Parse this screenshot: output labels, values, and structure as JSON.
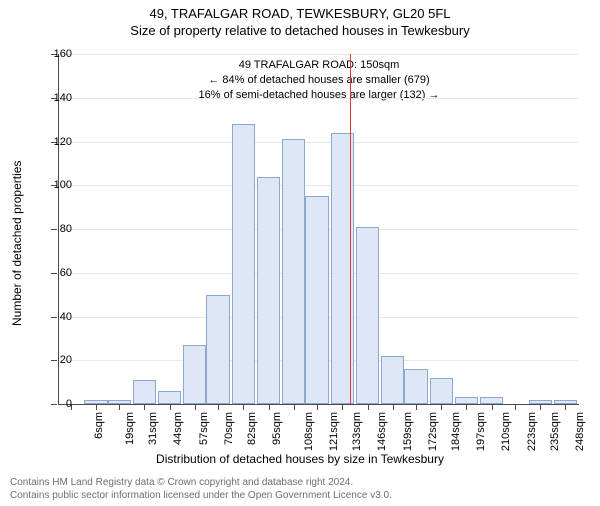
{
  "header": {
    "title": "49, TRAFALGAR ROAD, TEWKESBURY, GL20 5FL",
    "subtitle": "Size of property relative to detached houses in Tewkesbury"
  },
  "callout": {
    "line1": "49 TRAFALGAR ROAD: 150sqm",
    "line2": "← 84% of detached houses are smaller (679)",
    "line3": "16% of semi-detached houses are larger (132) →"
  },
  "chart": {
    "type": "histogram",
    "y_axis_title": "Number of detached properties",
    "x_axis_title": "Distribution of detached houses by size in Tewkesbury",
    "ymax": 160,
    "ytick_step": 20,
    "yticks": [
      0,
      20,
      40,
      60,
      80,
      100,
      120,
      140,
      160
    ],
    "bar_fill": "#dde7f6",
    "bar_stroke": "#8fa6d0",
    "grid_color": "#e8e8e8",
    "axis_color": "#4a4a4a",
    "background_color": "#ffffff",
    "marker_value_sqm": 150,
    "marker_color": "#d23a3a",
    "x_min": 0,
    "x_max": 268,
    "x_tick_labels": [
      "6sqm",
      "19sqm",
      "31sqm",
      "44sqm",
      "57sqm",
      "70sqm",
      "82sqm",
      "95sqm",
      "108sqm",
      "121sqm",
      "133sqm",
      "146sqm",
      "159sqm",
      "172sqm",
      "184sqm",
      "197sqm",
      "210sqm",
      "223sqm",
      "235sqm",
      "248sqm",
      "261sqm"
    ],
    "x_tick_positions": [
      6,
      19,
      31,
      44,
      57,
      70,
      82,
      95,
      108,
      121,
      133,
      146,
      159,
      172,
      184,
      197,
      210,
      223,
      235,
      248,
      261
    ],
    "bars": [
      {
        "x": 19,
        "count": 2
      },
      {
        "x": 31,
        "count": 2
      },
      {
        "x": 44,
        "count": 11
      },
      {
        "x": 57,
        "count": 6
      },
      {
        "x": 70,
        "count": 27
      },
      {
        "x": 82,
        "count": 50
      },
      {
        "x": 95,
        "count": 128
      },
      {
        "x": 108,
        "count": 104
      },
      {
        "x": 121,
        "count": 121
      },
      {
        "x": 133,
        "count": 95
      },
      {
        "x": 146,
        "count": 124
      },
      {
        "x": 159,
        "count": 81
      },
      {
        "x": 172,
        "count": 22
      },
      {
        "x": 184,
        "count": 16
      },
      {
        "x": 197,
        "count": 12
      },
      {
        "x": 210,
        "count": 3
      },
      {
        "x": 223,
        "count": 3
      },
      {
        "x": 235,
        "count": 0
      },
      {
        "x": 248,
        "count": 2
      },
      {
        "x": 261,
        "count": 2
      }
    ],
    "bar_width_sqm": 12
  },
  "footer": {
    "line1": "Contains HM Land Registry data © Crown copyright and database right 2024.",
    "line2": "Contains public sector information licensed under the Open Government Licence v3.0."
  }
}
